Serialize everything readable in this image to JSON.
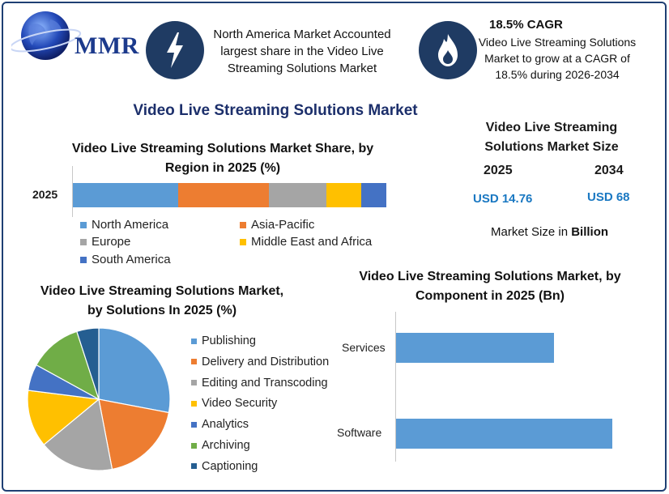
{
  "logo": {
    "text": "MMR"
  },
  "info_boxes": [
    {
      "icon": "lightning-icon",
      "text": "North America Market Accounted largest share in the Video Live Streaming Solutions Market"
    },
    {
      "icon": "flame-icon",
      "title": "18.5% CAGR",
      "text": "Video Live Streaming Solutions Market to grow at a CAGR of 18.5% during 2026-2034"
    }
  ],
  "main_title": "Video Live Streaming Solutions Market",
  "market_size": {
    "title": "Video Live Streaming Solutions Market Size",
    "year_a": "2025",
    "year_b": "2034",
    "value_a": "USD 14.76",
    "value_b": "USD 68",
    "unit_prefix": "Market Size in ",
    "unit_bold": "Billion"
  },
  "colors": {
    "north_america": "#5b9bd5",
    "asia_pacific": "#ed7d31",
    "europe": "#a5a5a5",
    "mea": "#ffc000",
    "south_america": "#4472c4",
    "publishing": "#5b9bd5",
    "delivery": "#ed7d31",
    "editing": "#a5a5a5",
    "security": "#ffc000",
    "analytics": "#4472c4",
    "archiving": "#70ad47",
    "captioning": "#255e91",
    "frame": "#1f3f73",
    "title_blue": "#1c2f6b",
    "value_blue": "#1a78c2"
  },
  "chart_data": [
    {
      "type": "bar",
      "orientation": "horizontal-stacked",
      "title": "Video Live Streaming Solutions Market Share, by Region in 2025 (%)",
      "categories": [
        "2025"
      ],
      "series": [
        {
          "name": "North America",
          "values": [
            33.5
          ]
        },
        {
          "name": "Asia-Pacific",
          "values": [
            29
          ]
        },
        {
          "name": "Europe",
          "values": [
            18.5
          ]
        },
        {
          "name": "Middle East and Africa",
          "values": [
            11
          ]
        },
        {
          "name": "South America",
          "values": [
            8
          ]
        }
      ],
      "xlim": [
        0,
        100
      ],
      "legend": "bottom",
      "grid": false
    },
    {
      "type": "pie",
      "title": "Video Live Streaming Solutions Market, by Solutions In 2025 (%)",
      "categories": [
        "Publishing",
        "Delivery and Distribution",
        "Editing and Transcoding",
        "Video Security",
        "Analytics",
        "Archiving",
        "Captioning"
      ],
      "values": [
        28,
        19,
        17,
        13,
        6,
        12,
        5
      ],
      "legend": "right"
    },
    {
      "type": "bar",
      "orientation": "horizontal",
      "title": "Video Live Streaming Solutions Market, by Component in 2025 (Bn)",
      "categories": [
        "Services",
        "Software"
      ],
      "values": [
        6.2,
        8.5
      ],
      "xlim": [
        0,
        10
      ],
      "grid": false
    }
  ]
}
